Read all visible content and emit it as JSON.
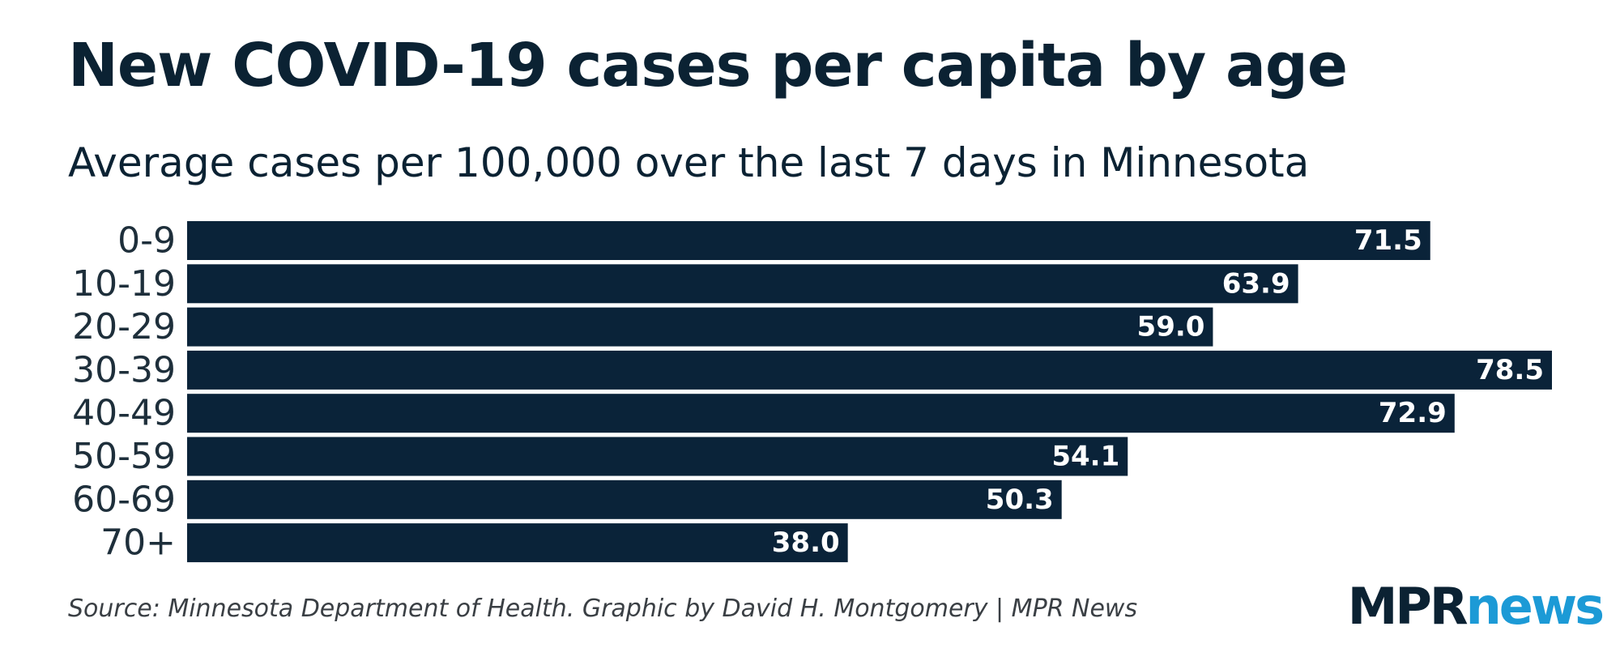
{
  "colors": {
    "bar": "#0a2339",
    "title": "#0b2233",
    "logo_mpr": "#0b2233",
    "logo_news": "#1c9ad6"
  },
  "chart_data": {
    "type": "bar",
    "orientation": "horizontal",
    "title": "New COVID-19 cases per capita by age",
    "subtitle": "Average cases per 100,000 over the last 7 days in Minnesota",
    "categories": [
      "0-9",
      "10-19",
      "20-29",
      "30-39",
      "40-49",
      "50-59",
      "60-69",
      "70+"
    ],
    "values": [
      71.5,
      63.9,
      59.0,
      78.5,
      72.9,
      54.1,
      50.3,
      38.0
    ],
    "value_labels": [
      "71.5",
      "63.9",
      "59.0",
      "78.5",
      "72.9",
      "54.1",
      "50.3",
      "38.0"
    ],
    "xlabel": "",
    "ylabel": "",
    "xlim": [
      0,
      78.5
    ],
    "grid": false,
    "legend": "none"
  },
  "footer": {
    "source": "Source: Minnesota Department of Health. Graphic by David H. Montgomery | MPR News"
  },
  "logo": {
    "part1": "MPR",
    "part2": "news"
  }
}
